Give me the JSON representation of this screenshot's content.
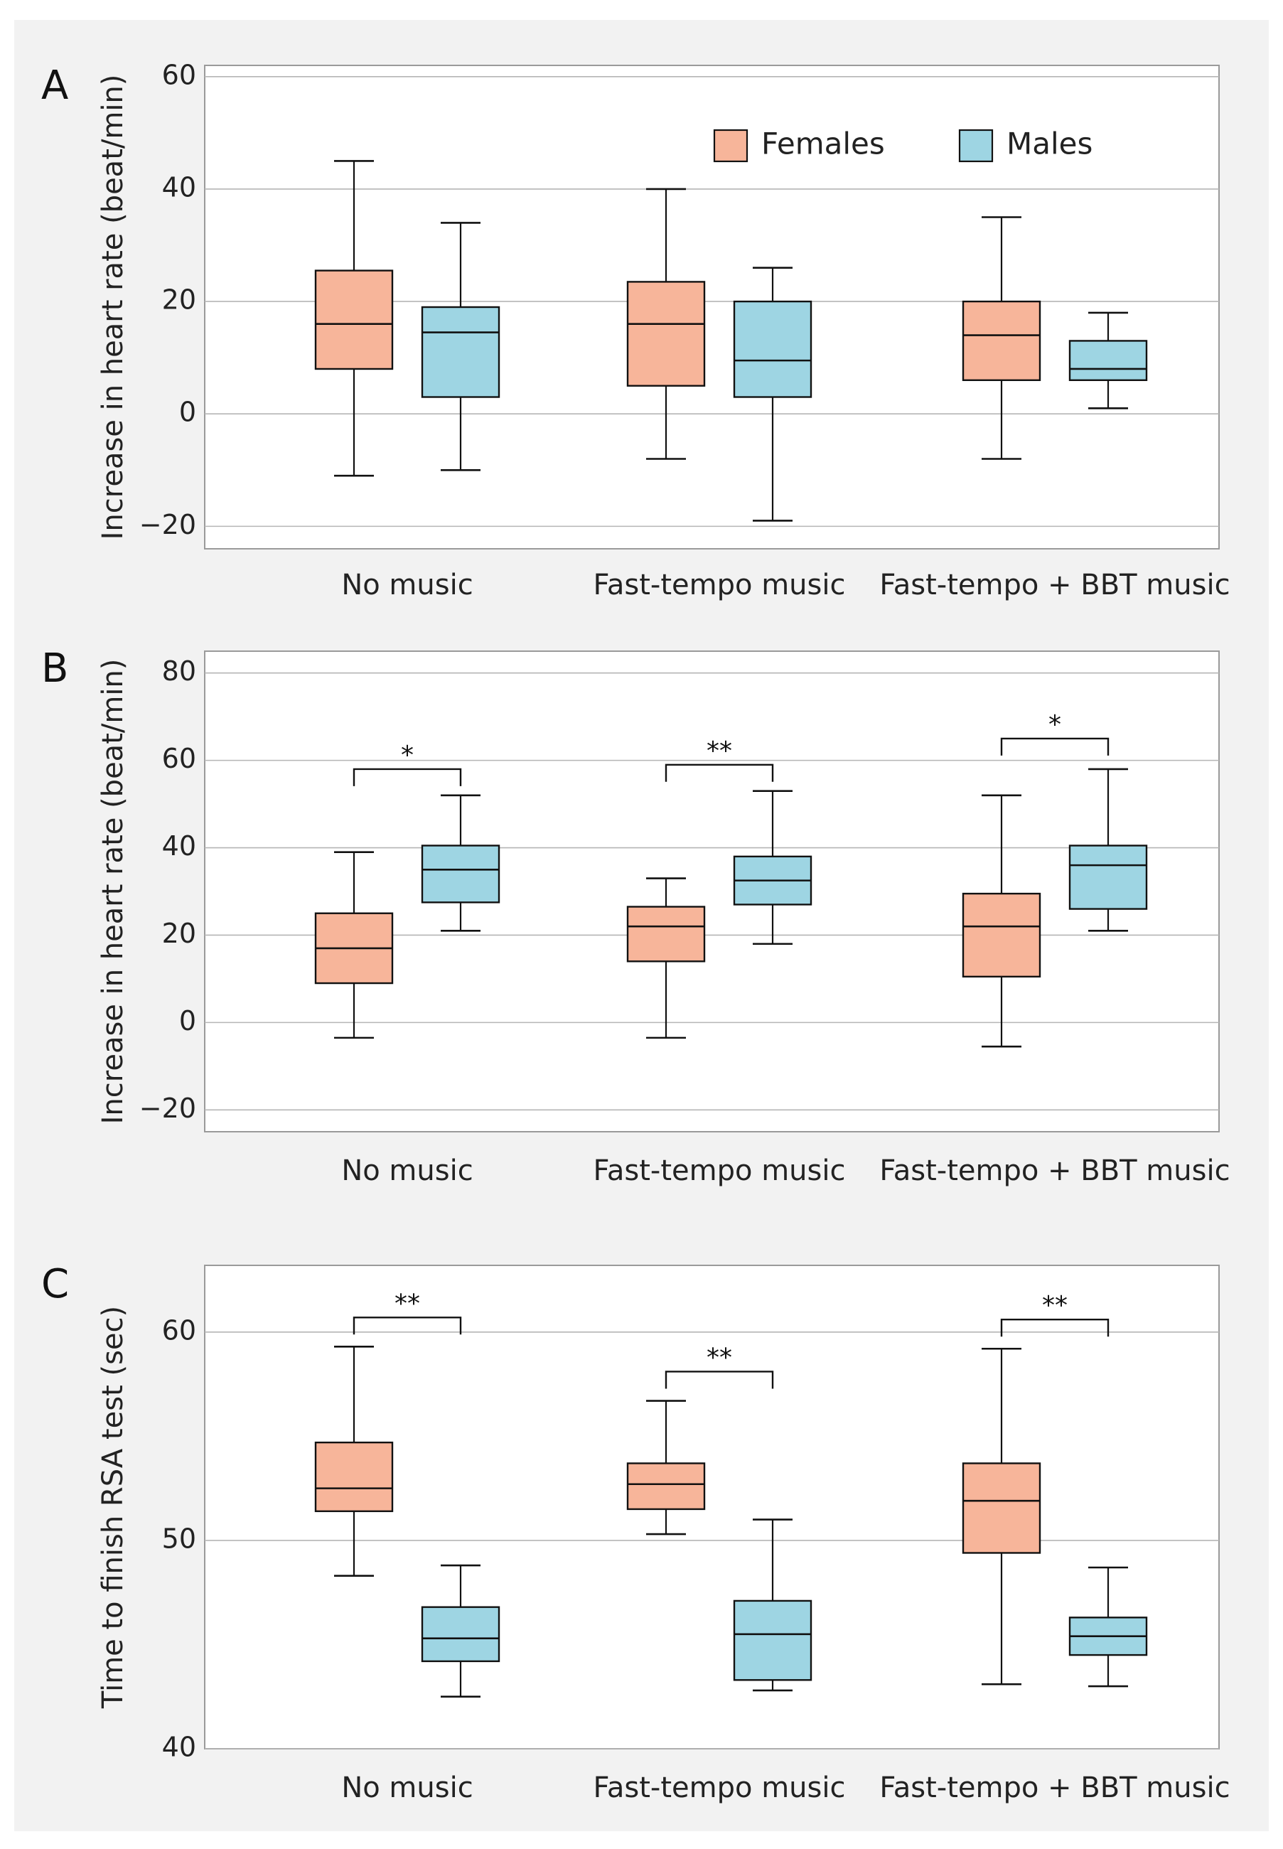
{
  "chart_data": [
    {
      "panel": "A",
      "type": "boxplot",
      "ylabel": "Increase in heart rate (beat/min)",
      "ylim": [
        -24,
        62
      ],
      "yticks": [
        -20,
        0,
        20,
        40,
        60
      ],
      "ytick_labels": [
        "−20",
        "0",
        "20",
        "40",
        "60"
      ],
      "categories": [
        "No music",
        "Fast-tempo music",
        "Fast-tempo + BBT music"
      ],
      "legend": {
        "placement": "top-right",
        "entries": [
          "Females",
          "Males"
        ]
      },
      "series": [
        {
          "name": "Females",
          "color": "#f7b59a",
          "boxes": [
            {
              "min": -11,
              "q1": 8,
              "median": 16,
              "q3": 25.5,
              "max": 45
            },
            {
              "min": -8,
              "q1": 5,
              "median": 16,
              "q3": 23.5,
              "max": 40
            },
            {
              "min": -8,
              "q1": 6,
              "median": 14,
              "q3": 20,
              "max": 35
            }
          ]
        },
        {
          "name": "Males",
          "color": "#9ed5e3",
          "boxes": [
            {
              "min": -10,
              "q1": 3,
              "median": 14.5,
              "q3": 19,
              "max": 34
            },
            {
              "min": -19,
              "q1": 3,
              "median": 9.5,
              "q3": 20,
              "max": 26
            },
            {
              "min": 1,
              "q1": 6,
              "median": 8,
              "q3": 13,
              "max": 18
            }
          ]
        }
      ],
      "significance": []
    },
    {
      "panel": "B",
      "type": "boxplot",
      "ylabel": "Increase in heart rate (beat/min)",
      "ylim": [
        -25,
        85
      ],
      "yticks": [
        -20,
        0,
        20,
        40,
        60,
        80
      ],
      "ytick_labels": [
        "−20",
        "0",
        "20",
        "40",
        "60",
        "80"
      ],
      "categories": [
        "No music",
        "Fast-tempo music",
        "Fast-tempo + BBT music"
      ],
      "series": [
        {
          "name": "Females",
          "color": "#f7b59a",
          "boxes": [
            {
              "min": -3.5,
              "q1": 9,
              "median": 17,
              "q3": 25,
              "max": 39
            },
            {
              "min": -3.5,
              "q1": 14,
              "median": 22,
              "q3": 26.5,
              "max": 33
            },
            {
              "min": -5.5,
              "q1": 10.5,
              "median": 22,
              "q3": 29.5,
              "max": 52
            }
          ]
        },
        {
          "name": "Males",
          "color": "#9ed5e3",
          "boxes": [
            {
              "min": 21,
              "q1": 27.5,
              "median": 35,
              "q3": 40.5,
              "max": 52
            },
            {
              "min": 18,
              "q1": 27,
              "median": 32.5,
              "q3": 38,
              "max": 53
            },
            {
              "min": 21,
              "q1": 26,
              "median": 36,
              "q3": 40.5,
              "max": 58
            }
          ]
        }
      ],
      "significance": [
        {
          "category": 0,
          "label": "*",
          "y": 58
        },
        {
          "category": 1,
          "label": "**",
          "y": 59
        },
        {
          "category": 2,
          "label": "*",
          "y": 65
        }
      ]
    },
    {
      "panel": "C",
      "type": "boxplot",
      "ylabel": "Time to finish RSA test (sec)",
      "ylim": [
        40,
        63.2
      ],
      "yticks": [
        40,
        50,
        60
      ],
      "ytick_labels": [
        "40",
        "50",
        "60"
      ],
      "categories": [
        "No music",
        "Fast-tempo music",
        "Fast-tempo + BBT music"
      ],
      "series": [
        {
          "name": "Females",
          "color": "#f7b59a",
          "boxes": [
            {
              "min": 48.3,
              "q1": 51.4,
              "median": 52.5,
              "q3": 54.7,
              "max": 59.3
            },
            {
              "min": 50.3,
              "q1": 51.5,
              "median": 52.7,
              "q3": 53.7,
              "max": 56.7
            },
            {
              "min": 43.1,
              "q1": 49.4,
              "median": 51.9,
              "q3": 53.7,
              "max": 59.2
            }
          ]
        },
        {
          "name": "Males",
          "color": "#9ed5e3",
          "boxes": [
            {
              "min": 42.5,
              "q1": 44.2,
              "median": 45.3,
              "q3": 46.8,
              "max": 48.8
            },
            {
              "min": 42.8,
              "q1": 43.3,
              "median": 45.5,
              "q3": 47.1,
              "max": 51.0
            },
            {
              "min": 43.0,
              "q1": 44.5,
              "median": 45.4,
              "q3": 46.3,
              "max": 48.7
            }
          ]
        }
      ],
      "significance": [
        {
          "category": 0,
          "label": "**",
          "y": 60.7
        },
        {
          "category": 1,
          "label": "**",
          "y": 58.1
        },
        {
          "category": 2,
          "label": "**",
          "y": 60.6
        }
      ]
    }
  ]
}
